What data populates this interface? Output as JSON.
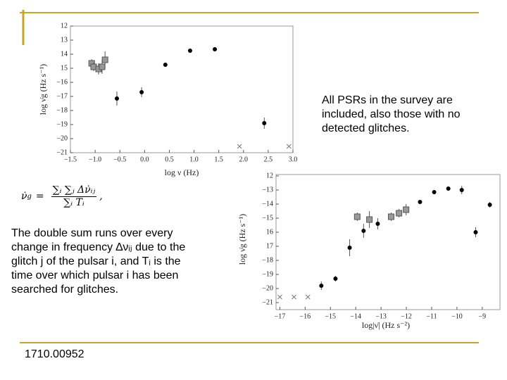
{
  "slide": {
    "note": "All PSRs in the survey are included, also those with no detected glitches.",
    "formula": {
      "lhs": "ν̇",
      "lhs_sub": "g",
      "eq": "=",
      "numerator": "∑ᵢ ∑ⱼ Δν̇ᵢⱼ",
      "denominator": "∑ᵢ Tᵢ",
      "end": ","
    },
    "description": "The double sum runs over every change in frequency ∆νᵢⱼ due to the glitch j of the pulsar i, and Tᵢ is the time over which pulsar i has been searched for glitches.",
    "footer": "1710.00952"
  },
  "chart_data": [
    {
      "type": "scatter",
      "xlabel": "log ν (Hz)",
      "ylabel": "log ν̇g (Hz s⁻¹)",
      "xlim": [
        -1.5,
        3.0
      ],
      "xticks": [
        {
          "value": -1.5,
          "label": "−1.5"
        },
        {
          "value": -1.0,
          "label": "−1.0"
        },
        {
          "value": -0.5,
          "label": "−0.5"
        },
        {
          "value": 0,
          "label": "0.0"
        },
        0.5,
        {
          "value": 1,
          "label": "1.0"
        },
        1.5,
        {
          "value": 2,
          "label": "2.0"
        },
        2.5,
        {
          "value": 3,
          "label": "3.0"
        }
      ],
      "ylim": [
        -21,
        -12
      ],
      "yticks": [
        {
          "value": -12,
          "label": "12"
        },
        {
          "value": -13,
          "label": "13"
        },
        {
          "value": -14,
          "label": "14"
        },
        {
          "value": -15,
          "label": "15"
        },
        {
          "value": -16,
          "label": "−16"
        },
        {
          "value": -17,
          "label": "−17"
        },
        {
          "value": -18,
          "label": "−18"
        },
        {
          "value": -19,
          "label": "−19"
        },
        {
          "value": -20,
          "label": "−20"
        },
        {
          "value": -21,
          "label": "−21"
        }
      ],
      "series": [
        {
          "color": "#999999",
          "marker": "square",
          "x": [
            -1.07,
            -1.03,
            -0.93,
            -0.86,
            -0.8
          ],
          "values": [
            -14.65,
            -14.9,
            -15.05,
            -14.9,
            -14.4
          ],
          "errors": [
            0.3,
            0.3,
            0.4,
            0.5,
            0.6
          ]
        },
        {
          "color": "#000000",
          "marker": "circle",
          "x": [
            -0.56,
            -0.06,
            0.42,
            0.92,
            1.42,
            2.42
          ],
          "values": [
            -17.15,
            -16.7,
            -14.75,
            -13.75,
            -13.65,
            -18.9
          ],
          "errors": [
            0.5,
            0.35,
            0.1,
            0.1,
            0.15,
            0.4
          ]
        },
        {
          "color": "#777777",
          "marker": "cross",
          "x": [
            1.92,
            2.92
          ],
          "values": [
            -20.55,
            -20.55
          ]
        }
      ]
    },
    {
      "type": "scatter",
      "xlabel": "log|ν̇| (Hz s⁻²)",
      "ylabel": "log ν̇g (Hz s⁻¹)",
      "xlim": [
        -17.15,
        -8.3
      ],
      "xticks": [
        {
          "value": -17,
          "label": "−17"
        },
        {
          "value": -16,
          "label": "−16"
        },
        {
          "value": -15,
          "label": "−15"
        },
        {
          "value": -14,
          "label": "−14"
        },
        {
          "value": -13,
          "label": "−13"
        },
        {
          "value": -12,
          "label": "−12"
        },
        {
          "value": -11,
          "label": "−11"
        },
        {
          "value": -10,
          "label": "−10"
        },
        {
          "value": -9,
          "label": "−9"
        }
      ],
      "ylim": [
        -21.5,
        -11.9
      ],
      "yticks": [
        {
          "value": -12,
          "label": "12"
        },
        {
          "value": -13,
          "label": "−13"
        },
        {
          "value": -14,
          "label": "−14"
        },
        {
          "value": -15,
          "label": "−15"
        },
        {
          "value": -16,
          "label": "16"
        },
        {
          "value": -17,
          "label": "17"
        },
        {
          "value": -18,
          "label": "−18"
        },
        {
          "value": -19,
          "label": "−19"
        },
        {
          "value": -20,
          "label": "−20"
        },
        {
          "value": -21,
          "label": "−21"
        }
      ],
      "series": [
        {
          "color": "#999999",
          "marker": "square",
          "x": [
            -13.94,
            -13.46,
            -12.6,
            -12.29,
            -12.01
          ],
          "values": [
            -14.9,
            -15.1,
            -14.9,
            -14.65,
            -14.4
          ],
          "errors": [
            0.3,
            0.6,
            0.3,
            0.3,
            0.4
          ]
        },
        {
          "color": "#000000",
          "marker": "circle",
          "x": [
            -15.36,
            -14.8,
            -14.24,
            -13.69,
            -13.13,
            -11.46,
            -10.9,
            -10.34,
            -9.81,
            -9.26,
            -8.7
          ],
          "values": [
            -19.8,
            -19.3,
            -17.1,
            -15.9,
            -15.4,
            -13.85,
            -13.15,
            -12.9,
            -13.0,
            -16.0,
            -14.05
          ],
          "errors": [
            0.3,
            0.2,
            0.6,
            0.5,
            0.4,
            0.1,
            0.15,
            0.1,
            0.3,
            0.35,
            0.2
          ]
        },
        {
          "color": "#777777",
          "marker": "cross",
          "x": [
            -17,
            -16.44,
            -15.89
          ],
          "values": [
            -20.6,
            -20.6,
            -20.6
          ]
        }
      ]
    }
  ]
}
